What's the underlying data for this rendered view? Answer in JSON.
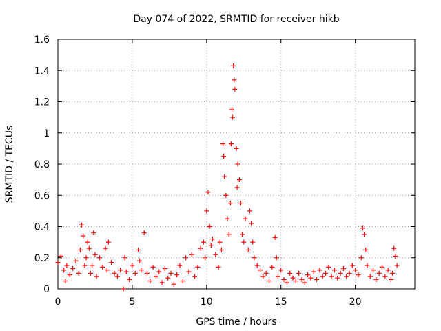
{
  "chart_data": {
    "type": "scatter",
    "title": "Day 074 of 2022, SRMTID for receiver hikb",
    "xlabel": "GPS time / hours",
    "ylabel": "SRMTID / TECUs",
    "xlim": [
      0,
      24
    ],
    "ylim": [
      0,
      1.6
    ],
    "x_ticks": [
      0,
      5,
      10,
      15,
      20
    ],
    "x_tick_labels": [
      "0",
      "5",
      "10",
      "15",
      "20"
    ],
    "y_ticks": [
      0,
      0.2,
      0.4,
      0.6,
      0.8,
      1,
      1.2,
      1.4,
      1.6
    ],
    "y_tick_labels": [
      "0",
      "0.2",
      "0.4",
      "0.6",
      "0.8",
      "1",
      "1.2",
      "1.4",
      "1.6"
    ],
    "grid": true,
    "marker": "+",
    "color": "#ff0000",
    "series": [
      {
        "name": "SRMTID",
        "x": [
          0.0,
          0.2,
          0.4,
          0.5,
          0.6,
          0.8,
          1.0,
          1.2,
          1.4,
          1.5,
          1.6,
          1.7,
          1.8,
          1.9,
          2.0,
          2.1,
          2.2,
          2.3,
          2.4,
          2.5,
          2.6,
          2.8,
          3.0,
          3.2,
          3.3,
          3.4,
          3.6,
          3.8,
          4.0,
          4.2,
          4.4,
          4.5,
          4.6,
          4.8,
          5.0,
          5.2,
          5.4,
          5.5,
          5.6,
          5.8,
          6.0,
          6.2,
          6.4,
          6.6,
          6.8,
          7.0,
          7.2,
          7.4,
          7.6,
          7.8,
          8.0,
          8.2,
          8.4,
          8.6,
          8.8,
          9.0,
          9.2,
          9.4,
          9.6,
          9.8,
          9.9,
          10.0,
          10.1,
          10.2,
          10.3,
          10.4,
          10.6,
          10.8,
          10.9,
          11.0,
          11.1,
          11.15,
          11.2,
          11.3,
          11.4,
          11.5,
          11.6,
          11.65,
          11.7,
          11.75,
          11.8,
          11.85,
          11.9,
          12.0,
          12.05,
          12.1,
          12.2,
          12.3,
          12.4,
          12.5,
          12.6,
          12.8,
          12.9,
          13.0,
          13.1,
          13.2,
          13.4,
          13.6,
          13.8,
          14.0,
          14.2,
          14.4,
          14.6,
          14.7,
          14.8,
          15.0,
          15.2,
          15.4,
          15.6,
          15.8,
          16.0,
          16.2,
          16.4,
          16.6,
          16.8,
          17.0,
          17.2,
          17.4,
          17.6,
          17.8,
          18.0,
          18.2,
          18.4,
          18.6,
          18.8,
          19.0,
          19.2,
          19.4,
          19.6,
          19.8,
          20.0,
          20.2,
          20.4,
          20.5,
          20.6,
          20.7,
          20.8,
          21.0,
          21.2,
          21.4,
          21.6,
          21.8,
          22.0,
          22.2,
          22.4,
          22.5,
          22.6,
          22.7,
          22.8
        ],
        "values": [
          0.17,
          0.21,
          0.12,
          0.05,
          0.15,
          0.09,
          0.13,
          0.18,
          0.1,
          0.25,
          0.41,
          0.34,
          0.15,
          0.2,
          0.3,
          0.26,
          0.1,
          0.15,
          0.36,
          0.22,
          0.08,
          0.2,
          0.14,
          0.26,
          0.12,
          0.3,
          0.17,
          0.1,
          0.08,
          0.12,
          0.0,
          0.2,
          0.11,
          0.06,
          0.15,
          0.1,
          0.25,
          0.18,
          0.12,
          0.36,
          0.1,
          0.05,
          0.14,
          0.08,
          0.11,
          0.04,
          0.13,
          0.07,
          0.1,
          0.03,
          0.09,
          0.15,
          0.05,
          0.2,
          0.11,
          0.22,
          0.08,
          0.14,
          0.26,
          0.3,
          0.2,
          0.5,
          0.62,
          0.4,
          0.28,
          0.32,
          0.22,
          0.14,
          0.3,
          0.25,
          0.93,
          0.85,
          0.72,
          0.6,
          0.45,
          0.35,
          0.55,
          0.93,
          1.15,
          1.1,
          1.43,
          1.34,
          1.28,
          0.9,
          0.65,
          0.8,
          0.7,
          0.55,
          0.35,
          0.3,
          0.45,
          0.25,
          0.5,
          0.42,
          0.3,
          0.2,
          0.15,
          0.12,
          0.08,
          0.1,
          0.05,
          0.14,
          0.33,
          0.2,
          0.08,
          0.12,
          0.06,
          0.04,
          0.1,
          0.07,
          0.05,
          0.1,
          0.06,
          0.04,
          0.09,
          0.07,
          0.11,
          0.06,
          0.12,
          0.08,
          0.1,
          0.14,
          0.08,
          0.12,
          0.07,
          0.1,
          0.13,
          0.08,
          0.1,
          0.15,
          0.12,
          0.09,
          0.2,
          0.39,
          0.35,
          0.25,
          0.15,
          0.08,
          0.12,
          0.06,
          0.1,
          0.14,
          0.08,
          0.12,
          0.06,
          0.1,
          0.26,
          0.21,
          0.15
        ]
      }
    ]
  }
}
